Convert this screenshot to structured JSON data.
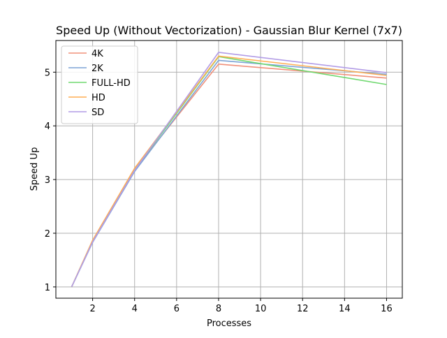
{
  "chart_data": {
    "type": "line",
    "title": "Speed Up (Without Vectorization) - Gaussian Blur Kernel (7x7)",
    "xlabel": "Processes",
    "ylabel": "Speed Up",
    "xlim": [
      0.25,
      16.75
    ],
    "ylim": [
      0.79,
      5.59
    ],
    "x_ticks": [
      2,
      4,
      6,
      8,
      10,
      12,
      14,
      16
    ],
    "y_ticks": [
      1,
      2,
      3,
      4,
      5
    ],
    "grid": true,
    "legend_position": "top-left",
    "x": [
      1,
      2,
      4,
      8,
      16
    ],
    "series": [
      {
        "name": "4K",
        "color": "#f0907a",
        "values": [
          1.0,
          1.85,
          3.18,
          5.15,
          4.89
        ]
      },
      {
        "name": "2K",
        "color": "#7da4d6",
        "values": [
          1.0,
          1.83,
          3.15,
          5.22,
          4.96
        ]
      },
      {
        "name": "FULL-HD",
        "color": "#6fd86f",
        "values": [
          1.0,
          1.86,
          3.18,
          5.29,
          4.77
        ]
      },
      {
        "name": "HD",
        "color": "#ffae52",
        "values": [
          1.0,
          1.87,
          3.21,
          5.3,
          4.94
        ]
      },
      {
        "name": "SD",
        "color": "#b29ce6",
        "values": [
          1.0,
          1.84,
          3.17,
          5.37,
          4.99
        ]
      }
    ]
  }
}
